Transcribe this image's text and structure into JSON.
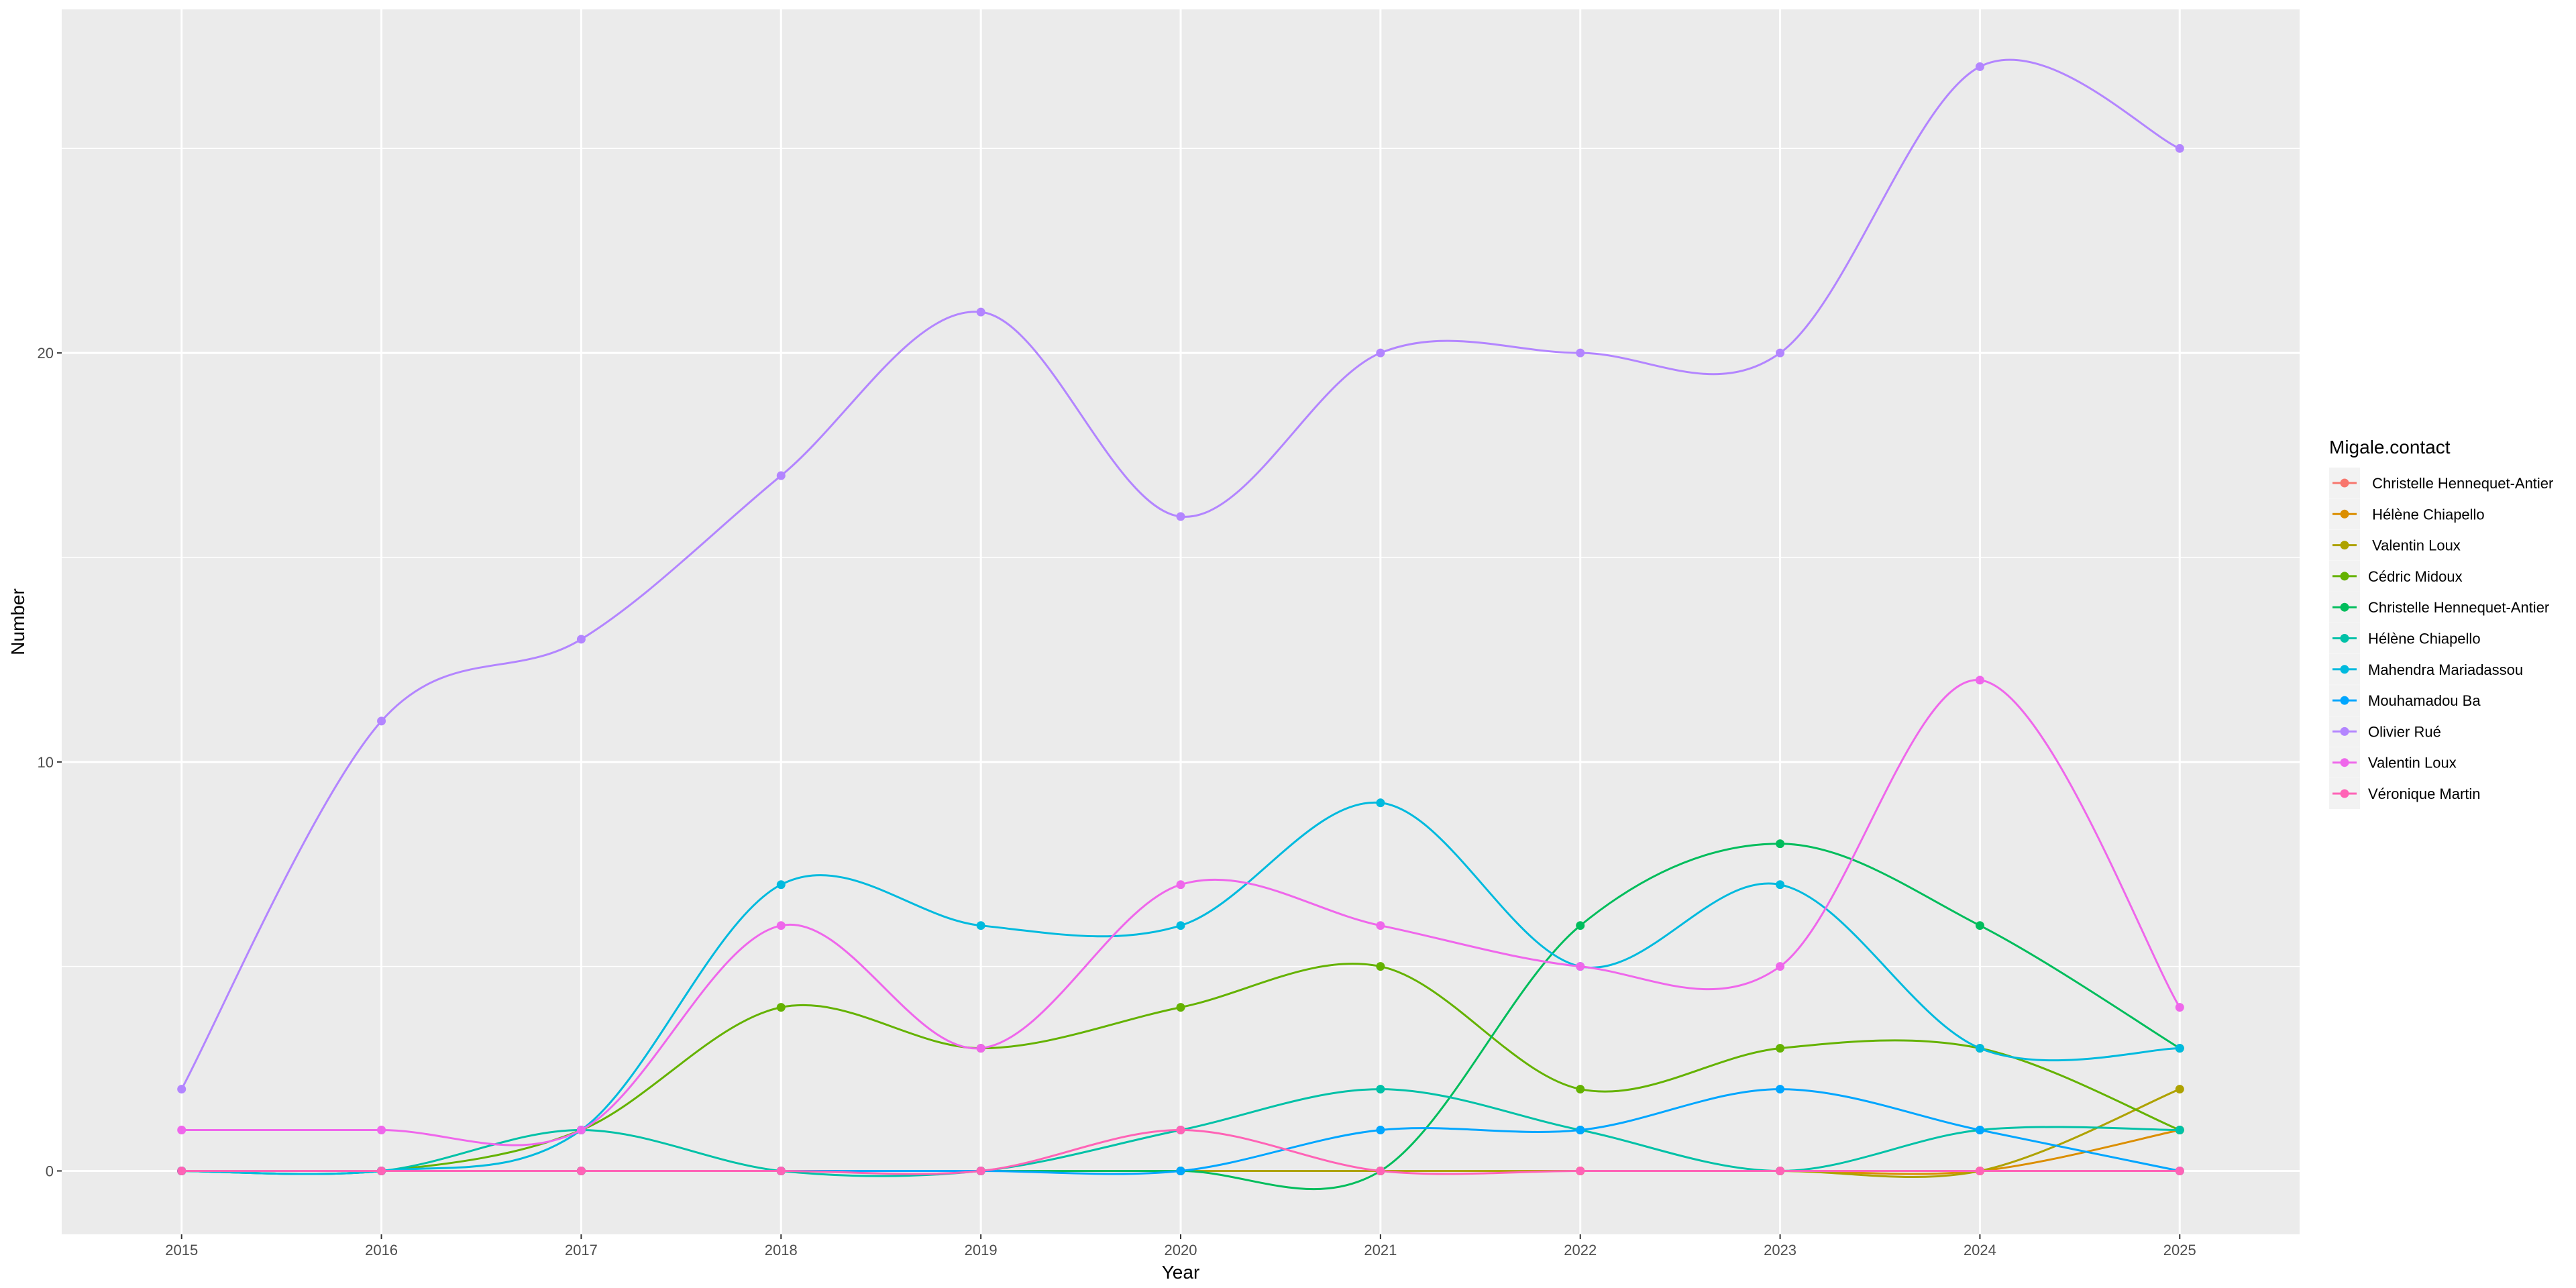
{
  "chart_data": {
    "type": "line",
    "xlabel": "Year",
    "ylabel": "Number",
    "x": [
      2015,
      2016,
      2017,
      2018,
      2019,
      2020,
      2021,
      2022,
      2023,
      2024,
      2025
    ],
    "xlim": [
      2014.4,
      2025.6
    ],
    "ylim": [
      -1.55,
      28.4
    ],
    "y_ticks": [
      0,
      10,
      20
    ],
    "grid": true,
    "legend_position": "right",
    "legend_title": "Migale.contact",
    "series": [
      {
        "name": " Christelle Hennequet-Antier",
        "color": "#F8766D",
        "values": [
          0,
          0,
          0,
          0,
          0,
          0,
          0,
          0,
          0,
          0,
          0
        ]
      },
      {
        "name": " Hélène Chiapello",
        "color": "#DB8E00",
        "values": [
          0,
          0,
          0,
          0,
          0,
          0,
          0,
          0,
          0,
          0,
          1
        ]
      },
      {
        "name": " Valentin Loux",
        "color": "#AEA200",
        "values": [
          0,
          0,
          0,
          0,
          0,
          0,
          0,
          0,
          0,
          0,
          2
        ]
      },
      {
        "name": "Cédric Midoux",
        "color": "#64B200",
        "values": [
          0,
          0,
          1,
          4,
          3,
          4,
          5,
          2,
          3,
          3,
          1
        ]
      },
      {
        "name": "Christelle Hennequet-Antier",
        "color": "#00BD5C",
        "values": [
          0,
          0,
          0,
          0,
          0,
          0,
          0,
          6,
          8,
          6,
          3
        ]
      },
      {
        "name": "Hélène Chiapello",
        "color": "#00C1A7",
        "values": [
          0,
          0,
          1,
          0,
          0,
          1,
          2,
          1,
          0,
          1,
          1
        ]
      },
      {
        "name": "Mahendra Mariadassou",
        "color": "#00BADE",
        "values": [
          0,
          0,
          1,
          7,
          6,
          6,
          9,
          5,
          7,
          3,
          3
        ]
      },
      {
        "name": "Mouhamadou Ba",
        "color": "#00A6FF",
        "values": [
          0,
          0,
          0,
          0,
          0,
          0,
          1,
          1,
          2,
          1,
          0
        ]
      },
      {
        "name": "Olivier Rué",
        "color": "#B385FF",
        "values": [
          2,
          11,
          13,
          17,
          21,
          16,
          20,
          20,
          20,
          27,
          25
        ]
      },
      {
        "name": "Valentin Loux",
        "color": "#EF67EB",
        "values": [
          1,
          1,
          1,
          6,
          3,
          7,
          6,
          5,
          5,
          12,
          4
        ]
      },
      {
        "name": "Véronique Martin",
        "color": "#FF63B6",
        "values": [
          0,
          0,
          0,
          0,
          0,
          1,
          0,
          0,
          0,
          0,
          0
        ]
      }
    ]
  }
}
